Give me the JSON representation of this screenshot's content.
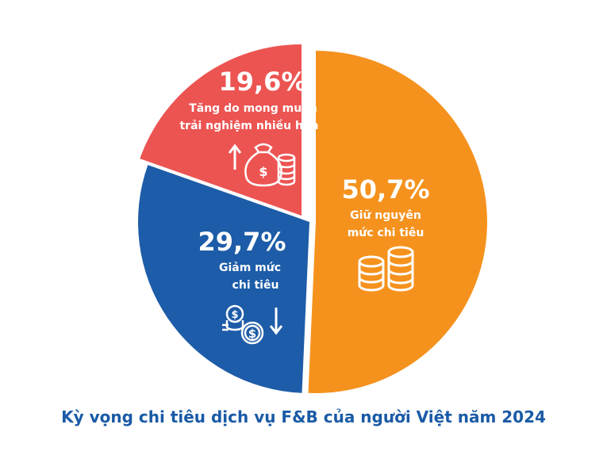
{
  "chart_data": {
    "type": "pie",
    "title": "Kỳ vọng chi tiêu dịch vụ F&B của người Việt năm 2024",
    "slices": [
      {
        "value": 50.7,
        "label": "50,7%",
        "desc_lines": [
          "Giữ nguyên",
          "mức chi tiêu"
        ],
        "color": "#f5921e",
        "icon": "coin-stack-icon"
      },
      {
        "value": 29.7,
        "label": "29,7%",
        "desc_lines": [
          "Giảm mức",
          "chi tiêu"
        ],
        "color": "#1d5ca8",
        "icon": "coins-down-arrow-icon"
      },
      {
        "value": 19.6,
        "label": "19,6%",
        "desc_lines": [
          "Tăng do mong muốn",
          "trải nghiệm nhiều hơn"
        ],
        "color": "#ec5452",
        "icon": "money-bag-up-arrow-icon"
      }
    ]
  }
}
